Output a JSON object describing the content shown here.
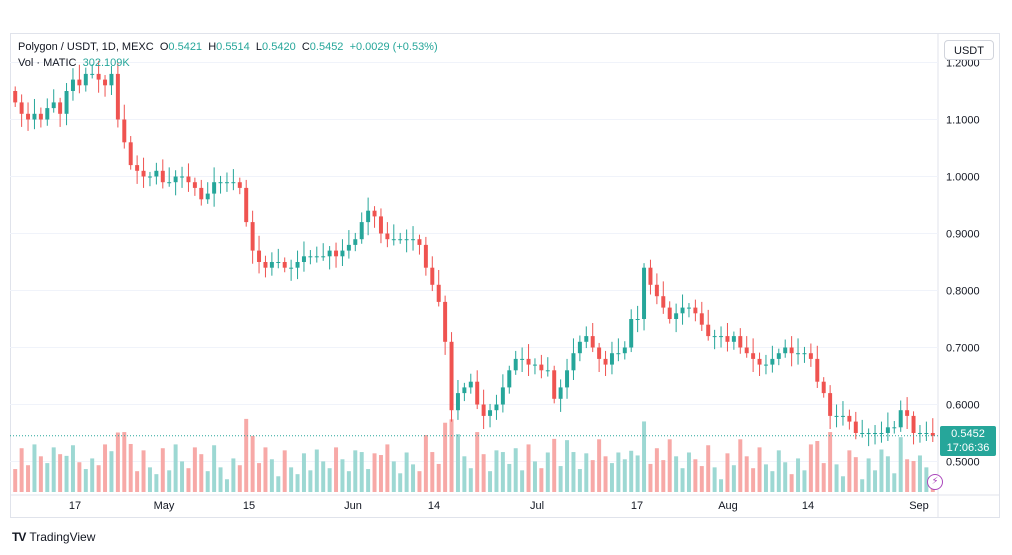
{
  "legend": {
    "symbol": "Polygon / USDT, 1D, MEXC",
    "o_label": "O",
    "o_value": "0.5421",
    "h_label": "H",
    "h_value": "0.5514",
    "l_label": "L",
    "l_value": "0.5420",
    "c_label": "C",
    "c_value": "0.5452",
    "change": "+0.0029 (+0.53%)",
    "vol_label": "Vol · MATIC",
    "vol_value": "302.109K"
  },
  "currency_button": "USDT",
  "price_badge": {
    "price": "0.5452",
    "countdown": "17:06:36"
  },
  "brand": {
    "logo": "TV",
    "name": "TradingView"
  },
  "colors": {
    "up": "#26a69a",
    "down": "#ef5350",
    "vol_up": "#9dd8d3",
    "vol_down": "#f7a9a7"
  },
  "chart_data": {
    "type": "candlestick",
    "series": [
      {
        "name": "Polygon / USDT"
      }
    ],
    "y_axis": {
      "ticks": [
        "1.2000",
        "1.1000",
        "1.0000",
        "0.9000",
        "0.8000",
        "0.7000",
        "0.6000",
        "0.5000"
      ],
      "ylim": [
        0.45,
        1.25
      ]
    },
    "x_axis": {
      "ticks": [
        "17",
        "May",
        "15",
        "Jun",
        "14",
        "Jul",
        "17",
        "Aug",
        "14",
        "Sep"
      ]
    },
    "last_price": 0.5452,
    "closes": [
      1.13,
      1.11,
      1.1,
      1.11,
      1.1,
      1.12,
      1.13,
      1.11,
      1.15,
      1.17,
      1.16,
      1.18,
      1.18,
      1.17,
      1.16,
      1.18,
      1.1,
      1.06,
      1.02,
      1.01,
      1.0,
      1.0,
      1.01,
      0.99,
      0.99,
      1.0,
      1.0,
      0.99,
      0.98,
      0.96,
      0.97,
      0.99,
      0.99,
      0.99,
      0.99,
      0.98,
      0.92,
      0.87,
      0.85,
      0.84,
      0.85,
      0.85,
      0.84,
      0.84,
      0.85,
      0.86,
      0.86,
      0.86,
      0.86,
      0.87,
      0.86,
      0.87,
      0.88,
      0.89,
      0.92,
      0.94,
      0.93,
      0.9,
      0.89,
      0.89,
      0.89,
      0.89,
      0.89,
      0.88,
      0.84,
      0.81,
      0.78,
      0.71,
      0.59,
      0.62,
      0.63,
      0.64,
      0.6,
      0.58,
      0.59,
      0.6,
      0.63,
      0.66,
      0.68,
      0.68,
      0.67,
      0.67,
      0.66,
      0.66,
      0.61,
      0.63,
      0.66,
      0.69,
      0.71,
      0.72,
      0.7,
      0.68,
      0.67,
      0.69,
      0.69,
      0.7,
      0.75,
      0.75,
      0.84,
      0.81,
      0.79,
      0.77,
      0.75,
      0.76,
      0.77,
      0.77,
      0.76,
      0.74,
      0.72,
      0.72,
      0.72,
      0.71,
      0.72,
      0.7,
      0.69,
      0.68,
      0.67,
      0.67,
      0.68,
      0.69,
      0.7,
      0.69,
      0.69,
      0.69,
      0.68,
      0.64,
      0.62,
      0.58,
      0.58,
      0.58,
      0.57,
      0.55,
      0.55,
      0.55,
      0.55,
      0.55,
      0.56,
      0.56,
      0.59,
      0.58,
      0.55,
      0.55,
      0.55,
      0.5452
    ],
    "volume_scale_max": 10
  }
}
